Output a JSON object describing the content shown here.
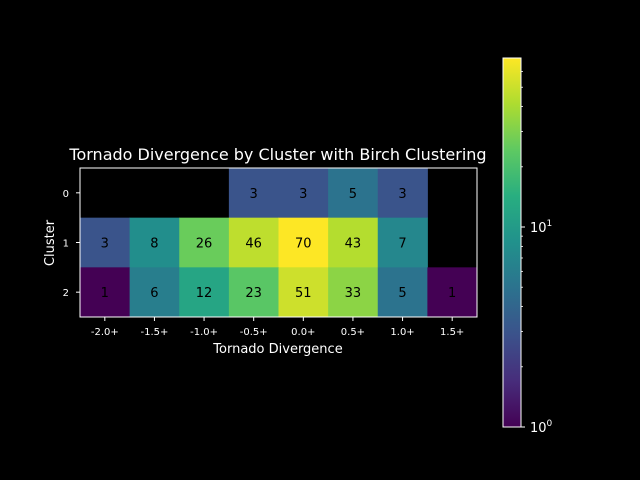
{
  "chart_data": {
    "type": "heatmap",
    "title": "Tornado Divergence by Cluster with Birch Clustering",
    "xlabel": "Tornado Divergence",
    "ylabel": "Cluster",
    "x_categories": [
      "-2.0+",
      "-1.5+",
      "-1.0+",
      "-0.5+",
      "0.0+",
      "0.5+",
      "1.0+",
      "1.5+"
    ],
    "y_categories": [
      "0",
      "1",
      "2"
    ],
    "values": [
      [
        null,
        null,
        null,
        3,
        3,
        5,
        3,
        null
      ],
      [
        3,
        8,
        26,
        46,
        70,
        43,
        7,
        null
      ],
      [
        1,
        6,
        12,
        23,
        51,
        33,
        5,
        1
      ]
    ],
    "colorbar": {
      "scale": "log",
      "colormap": "viridis",
      "min": 1,
      "max": 70,
      "ticks": [
        {
          "value": 1,
          "base": "10",
          "exp": "0"
        },
        {
          "value": 10,
          "base": "10",
          "exp": "1"
        }
      ]
    },
    "background_color": "#000000",
    "text_color": "#ffffff",
    "cell_text_color": "#000000"
  }
}
